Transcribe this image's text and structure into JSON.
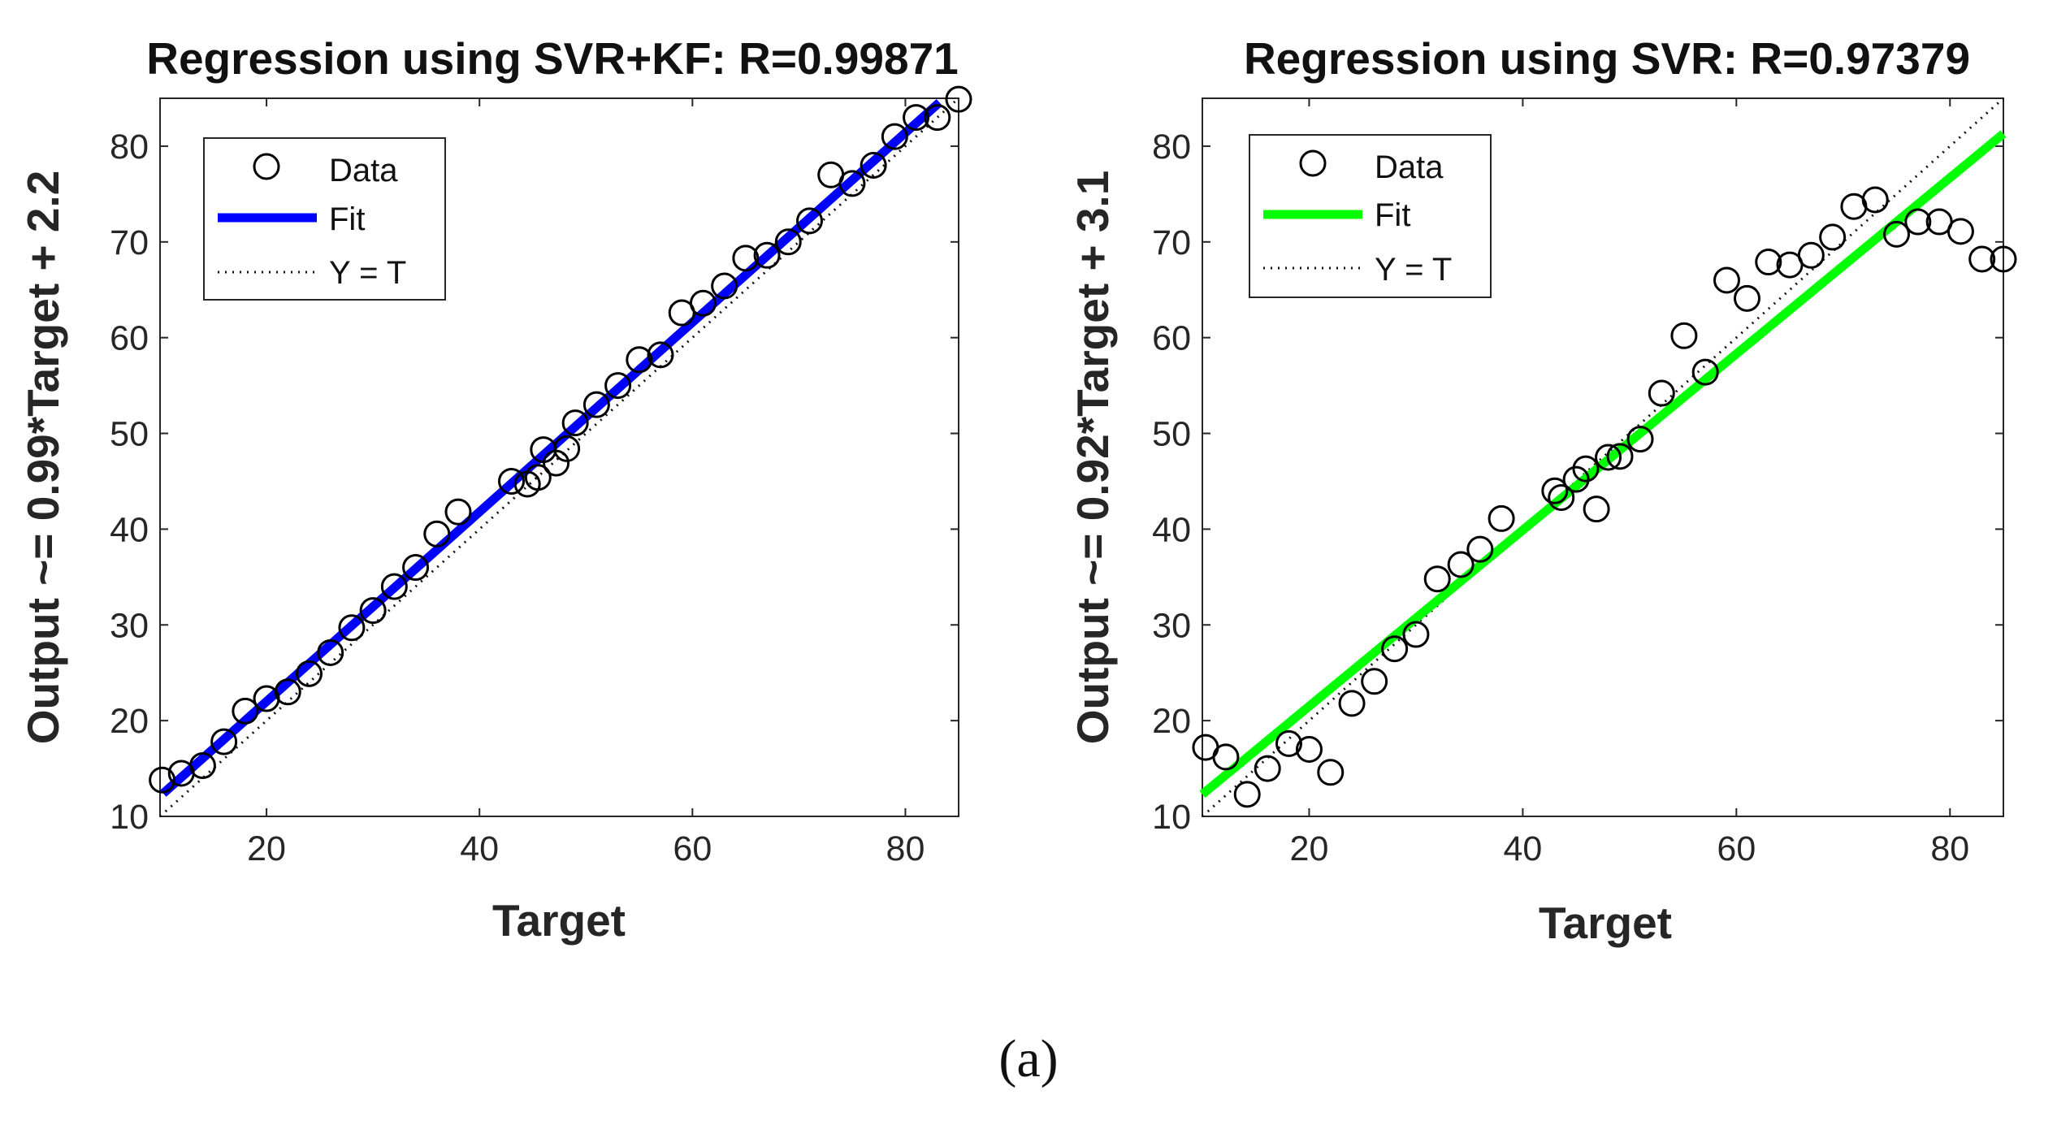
{
  "chart_data": [
    {
      "type": "scatter",
      "title": "Regression using SVR+KF: R=0.99871",
      "xlabel": "Target",
      "ylabel": "Output ~= 0.99*Target + 2.2",
      "xlim": [
        10,
        85
      ],
      "ylim": [
        10,
        85
      ],
      "xticks": [
        20,
        40,
        60,
        80
      ],
      "yticks": [
        10,
        20,
        30,
        40,
        50,
        60,
        70,
        80
      ],
      "fit": {
        "slope": 0.99,
        "intercept": 2.2,
        "color": "#0000ff",
        "x_range": [
          10.3,
          83.2
        ]
      },
      "identity_line": true,
      "legend": {
        "position": "top-left",
        "entries": [
          "Data",
          "Fit",
          "Y = T"
        ]
      },
      "points": [
        [
          10.2,
          13.8
        ],
        [
          12,
          14.5
        ],
        [
          14,
          15.3
        ],
        [
          16,
          17.8
        ],
        [
          18,
          21.0
        ],
        [
          20,
          22.3
        ],
        [
          22,
          23.0
        ],
        [
          24,
          24.9
        ],
        [
          26,
          27.1
        ],
        [
          28,
          29.7
        ],
        [
          30,
          31.5
        ],
        [
          32,
          34.0
        ],
        [
          34,
          36.0
        ],
        [
          36,
          39.5
        ],
        [
          38,
          41.8
        ],
        [
          43,
          45.0
        ],
        [
          44.5,
          44.7
        ],
        [
          45.5,
          45.4
        ],
        [
          46,
          48.3
        ],
        [
          47.2,
          46.9
        ],
        [
          48.2,
          48.4
        ],
        [
          49,
          51.1
        ],
        [
          51,
          53.0
        ],
        [
          53,
          55.0
        ],
        [
          55,
          57.7
        ],
        [
          57,
          58.2
        ],
        [
          59,
          62.6
        ],
        [
          61,
          63.6
        ],
        [
          63,
          65.4
        ],
        [
          65,
          68.3
        ],
        [
          67,
          68.6
        ],
        [
          69,
          70.0
        ],
        [
          71,
          72.2
        ],
        [
          73,
          77.0
        ],
        [
          75,
          76.1
        ],
        [
          77,
          78.0
        ],
        [
          79,
          81.0
        ],
        [
          81,
          83.0
        ],
        [
          83,
          83.0
        ],
        [
          85,
          84.9
        ]
      ]
    },
    {
      "type": "scatter",
      "title": "Regression using SVR: R=0.97379",
      "xlabel": "Target",
      "ylabel": "Output ~= 0.92*Target + 3.1",
      "xlim": [
        10,
        85
      ],
      "ylim": [
        10,
        85
      ],
      "xticks": [
        20,
        40,
        60,
        80
      ],
      "yticks": [
        10,
        20,
        30,
        40,
        50,
        60,
        70,
        80
      ],
      "fit": {
        "slope": 0.92,
        "intercept": 3.1,
        "color": "#00ff00",
        "x_range": [
          10,
          85
        ]
      },
      "identity_line": true,
      "legend": {
        "position": "top-left",
        "entries": [
          "Data",
          "Fit",
          "Y = T"
        ]
      },
      "points": [
        [
          10.3,
          17.2
        ],
        [
          12.2,
          16.2
        ],
        [
          14.2,
          12.3
        ],
        [
          16.1,
          15.0
        ],
        [
          18.1,
          17.6
        ],
        [
          20,
          17.0
        ],
        [
          22,
          14.6
        ],
        [
          24,
          21.8
        ],
        [
          26.1,
          24.1
        ],
        [
          28,
          27.5
        ],
        [
          30,
          29.0
        ],
        [
          32,
          34.8
        ],
        [
          34.2,
          36.3
        ],
        [
          36,
          37.9
        ],
        [
          38,
          41.1
        ],
        [
          43,
          44.0
        ],
        [
          43.6,
          43.3
        ],
        [
          45,
          45.2
        ],
        [
          45.9,
          46.3
        ],
        [
          46.9,
          42.1
        ],
        [
          48,
          47.5
        ],
        [
          49.1,
          47.6
        ],
        [
          51,
          49.4
        ],
        [
          53,
          54.2
        ],
        [
          55.1,
          60.2
        ],
        [
          57.1,
          56.4
        ],
        [
          59.1,
          66.0
        ],
        [
          61,
          64.1
        ],
        [
          63,
          67.9
        ],
        [
          65,
          67.6
        ],
        [
          67,
          68.6
        ],
        [
          69,
          70.5
        ],
        [
          71,
          73.7
        ],
        [
          73,
          74.4
        ],
        [
          75,
          70.8
        ],
        [
          77,
          72.1
        ],
        [
          79,
          72.1
        ],
        [
          81,
          71.1
        ],
        [
          83,
          68.2
        ],
        [
          85,
          68.2
        ]
      ]
    }
  ],
  "caption": "(a)"
}
